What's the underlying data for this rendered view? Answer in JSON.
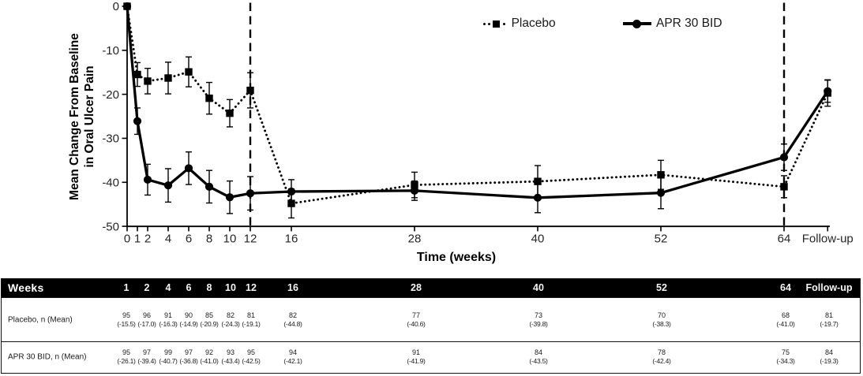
{
  "chart_data": {
    "type": "line",
    "xlabel": "Time (weeks)",
    "ylabel": "Mean Change From Baseline in Oral Ulcer Pain",
    "ylabel_lines": [
      "Mean Change From Baseline",
      "in Oral Ulcer Pain"
    ],
    "ylim": [
      -50,
      0
    ],
    "yticks": [
      0,
      -10,
      -20,
      -30,
      -40,
      -50
    ],
    "ytick_labels": [
      "0",
      "-10",
      "-20",
      "-30",
      "-40",
      "-50"
    ],
    "x_categories": [
      "0",
      "1",
      "2",
      "4",
      "6",
      "8",
      "10",
      "12",
      "16",
      "28",
      "40",
      "52",
      "64",
      "Follow-up"
    ],
    "x_weeks": [
      0,
      1,
      2,
      4,
      6,
      8,
      10,
      12,
      16,
      28,
      40,
      52,
      64,
      68.25
    ],
    "reference_lines_weeks": [
      12,
      64
    ],
    "legend_position": "top-right",
    "grid": false,
    "series": [
      {
        "name": "Placebo",
        "marker": "square",
        "line": "dotted",
        "color": "#000000",
        "values": [
          0,
          -15.5,
          -17.0,
          -16.3,
          -14.9,
          -20.9,
          -24.3,
          -19.1,
          -44.8,
          -40.6,
          -39.8,
          -38.3,
          -41.0,
          -19.7
        ],
        "errors": [
          0,
          2.7,
          2.9,
          3.6,
          3.4,
          3.6,
          3.1,
          4.0,
          3.3,
          2.9,
          3.6,
          3.3,
          2.5,
          3.0
        ]
      },
      {
        "name": "APR 30 BID",
        "marker": "circle",
        "line": "solid",
        "color": "#000000",
        "values": [
          0,
          -26.1,
          -39.4,
          -40.7,
          -36.8,
          -41.0,
          -43.4,
          -42.5,
          -42.1,
          -41.9,
          -43.5,
          -42.4,
          -34.3,
          -19.3
        ],
        "errors": [
          0,
          3.0,
          3.5,
          3.8,
          3.7,
          3.7,
          3.7,
          3.8,
          2.7,
          2.2,
          3.4,
          3.6,
          3.0,
          2.5
        ]
      }
    ]
  },
  "table": {
    "header_label": "Weeks",
    "columns": [
      "1",
      "2",
      "4",
      "6",
      "8",
      "10",
      "12",
      "16",
      "28",
      "40",
      "52",
      "64",
      "Follow-up"
    ],
    "rows": [
      {
        "label": "Placebo, n (Mean)",
        "n": [
          "95",
          "96",
          "91",
          "90",
          "85",
          "82",
          "81",
          "82",
          "77",
          "73",
          "70",
          "68",
          "81"
        ],
        "mean": [
          "(-15.5)",
          "(-17.0)",
          "(-16.3)",
          "(-14.9)",
          "(-20.9)",
          "(-24.3)",
          "(-19.1)",
          "(-44.8)",
          "(-40.6)",
          "(-39.8)",
          "(-38.3)",
          "(-41.0)",
          "(-19.7)"
        ]
      },
      {
        "label": "APR 30 BID, n (Mean)",
        "n": [
          "95",
          "97",
          "99",
          "97",
          "92",
          "93",
          "95",
          "94",
          "91",
          "84",
          "78",
          "75",
          "84"
        ],
        "mean": [
          "(-26.1)",
          "(-39.4)",
          "(-40.7)",
          "(-36.8)",
          "(-41.0)",
          "(-43.4)",
          "(-42.5)",
          "(-42.1)",
          "(-41.9)",
          "(-43.5)",
          "(-42.4)",
          "(-34.3)",
          "(-19.3)"
        ]
      }
    ]
  },
  "colors": {
    "foreground": "#000000",
    "background": "#ffffff",
    "table_header_bg": "#000000",
    "table_header_fg": "#ffffff"
  }
}
